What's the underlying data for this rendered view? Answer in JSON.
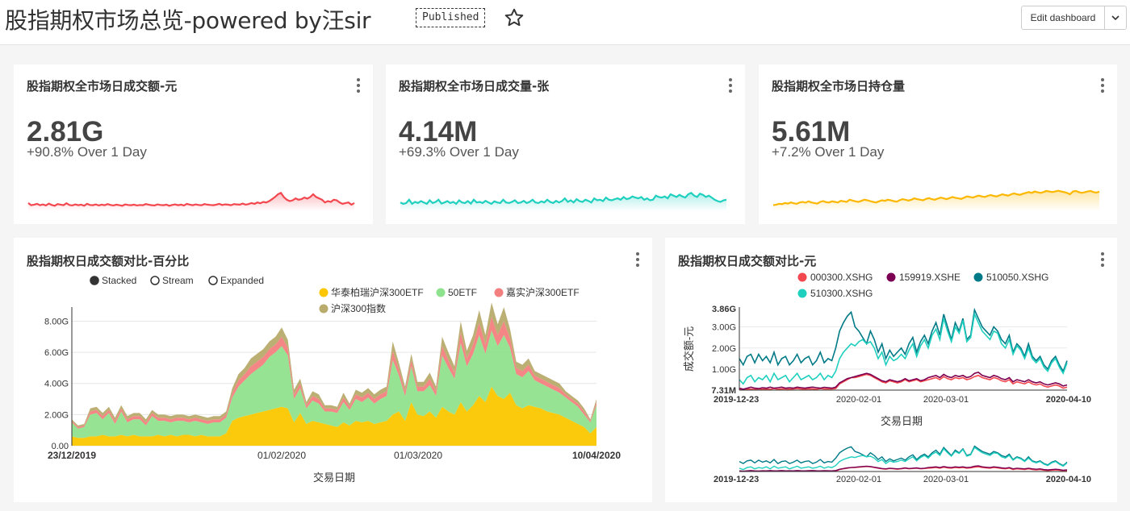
{
  "header": {
    "title": "股指期权市场总览-powered by汪sir",
    "status_badge": "Published",
    "edit_button": "Edit dashboard"
  },
  "kpis": [
    {
      "title": "股指期权全市场日成交额-元",
      "value": "2.81G",
      "change": "+90.8% Over 1 Day",
      "color": "#f3474f",
      "trend": [
        0.18,
        0.1,
        0.12,
        0.15,
        0.1,
        0.13,
        0.09,
        0.16,
        0.11,
        0.08,
        0.14,
        0.12,
        0.1,
        0.17,
        0.11,
        0.09,
        0.13,
        0.1,
        0.12,
        0.08,
        0.15,
        0.11,
        0.1,
        0.13,
        0.09,
        0.12,
        0.1,
        0.14,
        0.11,
        0.09,
        0.12,
        0.1,
        0.08,
        0.13,
        0.11,
        0.1,
        0.12,
        0.09,
        0.11,
        0.1,
        0.14,
        0.12,
        0.1,
        0.09,
        0.13,
        0.11,
        0.1,
        0.12,
        0.08,
        0.11,
        0.13,
        0.1,
        0.12,
        0.09,
        0.15,
        0.12,
        0.1,
        0.13,
        0.11,
        0.1,
        0.14,
        0.12,
        0.11,
        0.1,
        0.12,
        0.15,
        0.11,
        0.13,
        0.12,
        0.1,
        0.14,
        0.13,
        0.12,
        0.16,
        0.12,
        0.14,
        0.18,
        0.15,
        0.2,
        0.17,
        0.22,
        0.2,
        0.25,
        0.32,
        0.4,
        0.5,
        0.55,
        0.4,
        0.3,
        0.25,
        0.28,
        0.35,
        0.3,
        0.32,
        0.38,
        0.34,
        0.4,
        0.5,
        0.4,
        0.35,
        0.3,
        0.2,
        0.25,
        0.22,
        0.3,
        0.28,
        0.2,
        0.15,
        0.18,
        0.2,
        0.12,
        0.18
      ]
    },
    {
      "title": "股指期权全市场日成交量-张",
      "value": "4.14M",
      "change": "+69.3% Over 1 Day",
      "color": "#1fd0bf",
      "trend": [
        0.2,
        0.15,
        0.18,
        0.3,
        0.15,
        0.22,
        0.18,
        0.25,
        0.2,
        0.15,
        0.28,
        0.18,
        0.22,
        0.3,
        0.16,
        0.2,
        0.25,
        0.18,
        0.22,
        0.15,
        0.28,
        0.2,
        0.18,
        0.25,
        0.16,
        0.3,
        0.2,
        0.22,
        0.18,
        0.26,
        0.2,
        0.15,
        0.24,
        0.2,
        0.18,
        0.3,
        0.2,
        0.18,
        0.22,
        0.28,
        0.18,
        0.2,
        0.26,
        0.18,
        0.22,
        0.3,
        0.2,
        0.18,
        0.24,
        0.2,
        0.3,
        0.22,
        0.18,
        0.26,
        0.2,
        0.25,
        0.35,
        0.22,
        0.28,
        0.2,
        0.32,
        0.25,
        0.22,
        0.3,
        0.26,
        0.2,
        0.35,
        0.28,
        0.3,
        0.25,
        0.38,
        0.3,
        0.28,
        0.32,
        0.35,
        0.3,
        0.4,
        0.32,
        0.35,
        0.42,
        0.38,
        0.35,
        0.4,
        0.3,
        0.35,
        0.28,
        0.3,
        0.45,
        0.4,
        0.38,
        0.42,
        0.35,
        0.5,
        0.45,
        0.4,
        0.48,
        0.42,
        0.38,
        0.5,
        0.55,
        0.45,
        0.4,
        0.52,
        0.48,
        0.4,
        0.45,
        0.38,
        0.3,
        0.25,
        0.22,
        0.28,
        0.3
      ]
    },
    {
      "title": "股指期权全市场日持仓量",
      "value": "5.61M",
      "change": "+7.2% Over 1 Day",
      "color": "#fcb800",
      "trend": [
        0.1,
        0.12,
        0.15,
        0.14,
        0.18,
        0.16,
        0.2,
        0.17,
        0.15,
        0.2,
        0.22,
        0.19,
        0.24,
        0.2,
        0.18,
        0.16,
        0.22,
        0.25,
        0.21,
        0.2,
        0.24,
        0.22,
        0.2,
        0.26,
        0.24,
        0.22,
        0.3,
        0.27,
        0.24,
        0.22,
        0.26,
        0.3,
        0.28,
        0.25,
        0.22,
        0.2,
        0.24,
        0.28,
        0.26,
        0.3,
        0.28,
        0.25,
        0.23,
        0.28,
        0.32,
        0.3,
        0.27,
        0.3,
        0.35,
        0.32,
        0.3,
        0.28,
        0.33,
        0.36,
        0.32,
        0.3,
        0.34,
        0.38,
        0.35,
        0.32,
        0.36,
        0.4,
        0.37,
        0.35,
        0.33,
        0.38,
        0.42,
        0.4,
        0.38,
        0.42,
        0.45,
        0.42,
        0.4,
        0.44,
        0.47,
        0.44,
        0.42,
        0.46,
        0.5,
        0.47,
        0.45,
        0.5,
        0.53,
        0.5,
        0.48,
        0.52,
        0.55,
        0.58,
        0.55,
        0.6,
        0.57,
        0.55,
        0.58,
        0.62,
        0.6,
        0.58,
        0.6,
        0.63,
        0.6,
        0.58,
        0.55,
        0.5,
        0.6,
        0.62,
        0.58,
        0.55,
        0.57,
        0.6,
        0.62,
        0.58,
        0.56,
        0.6
      ]
    }
  ],
  "area_chart": {
    "title": "股指期权日成交额对比-百分比",
    "modes": [
      "Stacked",
      "Stream",
      "Expanded"
    ],
    "selected_mode": "Stacked",
    "xlabel": "交易日期",
    "chart_data": {
      "type": "area",
      "stacked": true,
      "ylim": [
        0,
        8.8
      ],
      "y_ticks": [
        "0.00",
        "2.00G",
        "4.00G",
        "6.00G",
        "8.00G"
      ],
      "x_ticks": [
        "23/12/2019",
        "01/02/2020",
        "01/03/2020",
        "10/04/2020"
      ],
      "x_tick_pos": [
        0,
        0.4,
        0.66,
        1
      ],
      "series": [
        {
          "name": "华泰柏瑞沪深300ETF",
          "color": "#fcc700",
          "values": [
            0.6,
            0.5,
            0.5,
            0.6,
            0.6,
            0.7,
            0.6,
            0.6,
            0.7,
            0.6,
            0.7,
            0.6,
            0.6,
            0.6,
            0.7,
            0.6,
            0.7,
            0.6,
            0.7,
            0.7,
            0.6,
            0.7,
            0.6,
            0.6,
            0.6,
            0.8,
            1.6,
            1.8,
            1.9,
            2.0,
            2.1,
            2.2,
            2.3,
            2.4,
            2.5,
            2.4,
            1.5,
            2.1,
            1.4,
            1.6,
            1.5,
            1.4,
            1.3,
            1.2,
            1.5,
            1.3,
            1.6,
            1.5,
            1.6,
            1.4,
            1.5,
            1.6,
            2.0,
            2.2,
            1.6,
            2.8,
            2.0,
            1.9,
            2.2,
            1.8,
            2.5,
            2.2,
            2.0,
            2.8,
            2.2,
            2.6,
            3.2,
            2.8,
            3.8,
            3.2,
            3.0,
            3.4,
            2.6,
            2.4,
            2.6,
            2.5,
            2.4,
            2.2,
            2.1,
            2.0,
            1.8,
            1.6,
            1.4,
            1.2,
            0.8,
            1.2
          ]
        },
        {
          "name": "50ETF",
          "color": "#8fe28d",
          "values": [
            0.9,
            0.6,
            0.7,
            1.4,
            1.5,
            1.0,
            1.5,
            0.8,
            1.5,
            0.9,
            1.0,
            1.1,
            0.7,
            1.3,
            0.9,
            1.0,
            0.8,
            1.0,
            0.9,
            0.8,
            1.0,
            0.8,
            0.8,
            0.9,
            0.9,
            1.0,
            1.5,
            2.0,
            2.3,
            2.6,
            2.8,
            3.0,
            3.4,
            3.6,
            3.9,
            3.4,
            1.5,
            1.6,
            1.0,
            1.3,
            1.2,
            0.8,
            0.9,
            0.9,
            1.3,
            1.0,
            1.4,
            1.3,
            1.5,
            1.3,
            1.5,
            1.6,
            3.5,
            2.3,
            1.6,
            2.3,
            1.5,
            1.6,
            1.7,
            1.4,
            3.3,
            2.8,
            2.3,
            3.8,
            2.9,
            3.3,
            3.9,
            3.1,
            3.6,
            3.2,
            4.1,
            2.9,
            2.0,
            2.0,
            2.2,
            1.7,
            1.6,
            1.6,
            1.5,
            1.4,
            1.3,
            1.2,
            1.1,
            0.8,
            0.7,
            1.4
          ]
        },
        {
          "name": "嘉实沪深300ETF",
          "color": "#f37f7f",
          "values": [
            0.1,
            0.1,
            0.1,
            0.2,
            0.2,
            0.2,
            0.2,
            0.2,
            0.2,
            0.2,
            0.2,
            0.2,
            0.2,
            0.2,
            0.2,
            0.2,
            0.2,
            0.2,
            0.2,
            0.2,
            0.2,
            0.2,
            0.2,
            0.2,
            0.2,
            0.2,
            0.3,
            0.4,
            0.4,
            0.5,
            0.5,
            0.5,
            0.5,
            0.5,
            0.6,
            0.5,
            0.3,
            0.3,
            0.2,
            0.3,
            0.3,
            0.2,
            0.2,
            0.2,
            0.3,
            0.2,
            0.3,
            0.3,
            0.3,
            0.3,
            0.3,
            0.3,
            0.6,
            0.4,
            0.3,
            0.4,
            0.3,
            0.3,
            0.4,
            0.3,
            0.6,
            0.5,
            0.4,
            0.7,
            0.5,
            0.6,
            0.8,
            0.6,
            0.9,
            0.7,
            0.9,
            0.6,
            0.4,
            0.4,
            0.4,
            0.3,
            0.3,
            0.3,
            0.3,
            0.3,
            0.2,
            0.2,
            0.2,
            0.2,
            0.1,
            0.2
          ]
        },
        {
          "name": "沪深300指数",
          "color": "#b8ab6b",
          "values": [
            0.1,
            0.1,
            0.1,
            0.2,
            0.2,
            0.2,
            0.2,
            0.2,
            0.2,
            0.2,
            0.2,
            0.2,
            0.2,
            0.2,
            0.2,
            0.2,
            0.2,
            0.2,
            0.2,
            0.2,
            0.2,
            0.2,
            0.2,
            0.2,
            0.2,
            0.2,
            0.3,
            0.4,
            0.4,
            0.5,
            0.5,
            0.5,
            0.5,
            0.5,
            0.6,
            0.5,
            0.3,
            0.3,
            0.2,
            0.3,
            0.3,
            0.2,
            0.2,
            0.2,
            0.3,
            0.2,
            0.3,
            0.3,
            0.3,
            0.3,
            0.3,
            0.3,
            0.6,
            0.4,
            0.3,
            0.4,
            0.3,
            0.3,
            0.4,
            0.3,
            0.6,
            0.5,
            0.4,
            0.7,
            0.5,
            0.6,
            0.8,
            0.6,
            0.9,
            0.7,
            0.9,
            0.6,
            0.4,
            0.4,
            0.4,
            0.3,
            0.3,
            0.3,
            0.3,
            0.3,
            0.2,
            0.2,
            0.2,
            0.2,
            0.1,
            0.2
          ]
        }
      ]
    }
  },
  "line_chart": {
    "title": "股指期权日成交额对比-元",
    "ylabel": "成交额-元",
    "xlabel": "交易日期",
    "chart_data": {
      "type": "line",
      "ylim": [
        0.00731,
        3.86
      ],
      "y_ticks": [
        "3.86G",
        "3.00G",
        "2.00G",
        "1.00G",
        "7.31M"
      ],
      "y_tick_vals": [
        3.86,
        3.0,
        2.0,
        1.0,
        0.00731
      ],
      "x_ticks": [
        "2019-12-23",
        "2020-02-01",
        "2020-03-01",
        "2020-04-10"
      ],
      "x_tick_pos": [
        0,
        0.37,
        0.64,
        1
      ],
      "series": [
        {
          "name": "000300.XSHG",
          "color": "#f3474f",
          "values": [
            0.05,
            0.03,
            0.06,
            0.05,
            0.04,
            0.07,
            0.05,
            0.06,
            0.04,
            0.08,
            0.05,
            0.06,
            0.07,
            0.05,
            0.06,
            0.08,
            0.06,
            0.05,
            0.07,
            0.06,
            0.05,
            0.08,
            0.06,
            0.07,
            0.06,
            0.08,
            0.3,
            0.4,
            0.5,
            0.6,
            0.6,
            0.65,
            0.7,
            0.75,
            0.7,
            0.6,
            0.5,
            0.4,
            0.35,
            0.45,
            0.4,
            0.35,
            0.4,
            0.5,
            0.4,
            0.45,
            0.5,
            0.4,
            0.45,
            0.5,
            0.55,
            0.6,
            0.5,
            0.65,
            0.55,
            0.5,
            0.6,
            0.55,
            0.6,
            0.5,
            0.55,
            0.65,
            0.7,
            0.6,
            0.55,
            0.5,
            0.6,
            0.55,
            0.45,
            0.4,
            0.5,
            0.3,
            0.4,
            0.35,
            0.3,
            0.4,
            0.3,
            0.25,
            0.3,
            0.2,
            0.15,
            0.2,
            0.25,
            0.2,
            0.1,
            0.15
          ]
        },
        {
          "name": "159919.XSHE",
          "color": "#7b0051",
          "values": [
            0.1,
            0.05,
            0.1,
            0.15,
            0.1,
            0.08,
            0.12,
            0.1,
            0.15,
            0.1,
            0.12,
            0.15,
            0.1,
            0.12,
            0.1,
            0.15,
            0.12,
            0.1,
            0.13,
            0.15,
            0.12,
            0.1,
            0.14,
            0.12,
            0.1,
            0.15,
            0.35,
            0.45,
            0.55,
            0.6,
            0.65,
            0.7,
            0.75,
            0.8,
            0.75,
            0.65,
            0.55,
            0.45,
            0.4,
            0.5,
            0.45,
            0.4,
            0.45,
            0.55,
            0.45,
            0.5,
            0.55,
            0.45,
            0.5,
            0.6,
            0.65,
            0.7,
            0.6,
            0.75,
            0.65,
            0.6,
            0.7,
            0.65,
            0.7,
            0.6,
            0.65,
            0.8,
            0.85,
            0.7,
            0.65,
            0.6,
            0.7,
            0.65,
            0.55,
            0.5,
            0.6,
            0.4,
            0.5,
            0.45,
            0.4,
            0.5,
            0.4,
            0.35,
            0.4,
            0.3,
            0.25,
            0.3,
            0.35,
            0.3,
            0.2,
            0.25
          ]
        },
        {
          "name": "510050.XSHG",
          "color": "#007a87",
          "values": [
            1.5,
            1.2,
            1.6,
            1.7,
            1.3,
            1.7,
            1.4,
            1.6,
            1.3,
            1.8,
            1.2,
            1.5,
            1.6,
            1.2,
            1.4,
            1.7,
            1.3,
            1.5,
            1.6,
            1.2,
            1.4,
            1.8,
            1.3,
            1.5,
            1.4,
            2.0,
            2.8,
            3.2,
            3.5,
            3.7,
            3.0,
            2.8,
            2.5,
            2.2,
            2.8,
            2.4,
            1.8,
            2.2,
            1.5,
            1.9,
            1.6,
            1.8,
            2.0,
            1.7,
            2.2,
            2.5,
            1.8,
            2.3,
            2.6,
            2.2,
            2.8,
            3.2,
            2.6,
            3.6,
            3.0,
            2.4,
            3.2,
            2.8,
            3.4,
            2.4,
            2.6,
            3.8,
            3.4,
            3.0,
            2.8,
            2.6,
            3.0,
            2.8,
            2.4,
            2.2,
            2.6,
            1.8,
            2.2,
            2.0,
            1.6,
            2.2,
            1.6,
            1.4,
            1.6,
            1.2,
            1.0,
            1.4,
            1.6,
            1.2,
            0.9,
            1.4
          ]
        },
        {
          "name": "510300.XSHG",
          "color": "#1fd0bf",
          "values": [
            0.5,
            0.3,
            0.6,
            0.7,
            0.4,
            0.6,
            0.5,
            0.7,
            0.4,
            0.8,
            0.5,
            0.6,
            0.7,
            0.4,
            0.6,
            0.8,
            0.5,
            0.6,
            0.7,
            0.5,
            0.6,
            0.8,
            0.5,
            0.7,
            0.6,
            0.9,
            1.5,
            1.8,
            2.0,
            2.2,
            2.1,
            2.3,
            2.4,
            2.2,
            2.3,
            2.0,
            1.5,
            1.8,
            1.2,
            1.6,
            1.4,
            1.5,
            1.7,
            1.5,
            1.9,
            2.2,
            1.6,
            2.1,
            2.4,
            2.0,
            2.6,
            2.9,
            2.4,
            3.4,
            2.8,
            2.3,
            3.0,
            2.7,
            3.3,
            2.3,
            2.5,
            3.6,
            3.2,
            2.8,
            2.6,
            2.4,
            2.8,
            2.7,
            2.2,
            2.0,
            2.4,
            1.7,
            2.1,
            1.9,
            1.5,
            2.0,
            1.5,
            1.3,
            1.5,
            1.1,
            0.9,
            1.3,
            1.5,
            1.1,
            0.8,
            1.3
          ]
        }
      ]
    }
  }
}
